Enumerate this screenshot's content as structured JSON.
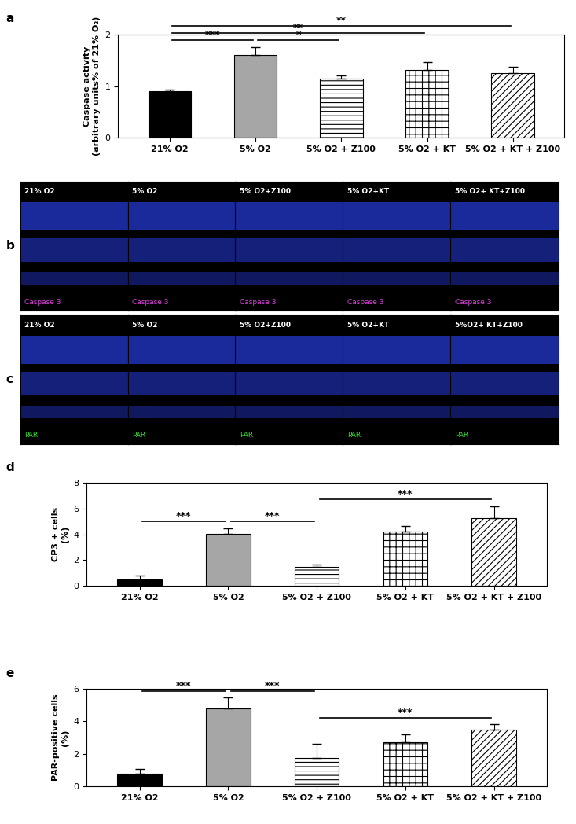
{
  "chart_data": [
    {
      "type": "bar",
      "panel": "a",
      "y_label": "Caspase activity\n(arbitrary units% of 21% O₂)",
      "categories": [
        "21% O2",
        "5% O2",
        "5% O2 + Z100",
        "5% O2 + KT",
        "5% O2 + KT + Z100"
      ],
      "values": [
        0.9,
        1.6,
        1.15,
        1.32,
        1.25
      ],
      "errors": [
        0.03,
        0.15,
        0.06,
        0.15,
        0.12
      ],
      "colors": [
        "#000000",
        "#a6a6a6",
        "#ffffff",
        "#ffffff",
        "#ffffff"
      ],
      "ylim": [
        0,
        2
      ],
      "yticks": [
        0,
        1,
        2
      ],
      "significance": [
        {
          "from": 0,
          "to": 1,
          "label": "***"
        },
        {
          "from": 1,
          "to": 2,
          "label": "*"
        },
        {
          "from": 0,
          "to": 3,
          "label": "**"
        },
        {
          "from": 0,
          "to": 4,
          "label": "**"
        }
      ]
    },
    {
      "type": "bar",
      "panel": "d",
      "y_label": "CP3 + cells\n(%)",
      "categories": [
        "21% O2",
        "5% O2",
        "5% O2 + Z100",
        "5% O2 + KT",
        "5% O2 + KT + Z100"
      ],
      "values": [
        0.5,
        4.05,
        1.5,
        4.2,
        5.25
      ],
      "errors": [
        0.3,
        0.4,
        0.15,
        0.45,
        0.9
      ],
      "colors": [
        "#000000",
        "#a6a6a6",
        "#ffffff",
        "#ffffff",
        "#ffffff"
      ],
      "ylim": [
        0,
        8
      ],
      "yticks": [
        0,
        2,
        4,
        6,
        8
      ],
      "significance": [
        {
          "from": 0,
          "to": 1,
          "label": "***"
        },
        {
          "from": 1,
          "to": 2,
          "label": "***"
        },
        {
          "from": 2,
          "to": 4,
          "label": "***"
        }
      ]
    },
    {
      "type": "bar",
      "panel": "e",
      "y_label": "PAR-positive cells\n(%)",
      "categories": [
        "21% O2",
        "5% O2",
        "5% O2 + Z100",
        "5% O2 + KT",
        "5% O2 + KT + Z100"
      ],
      "values": [
        0.75,
        4.8,
        1.75,
        2.7,
        3.5
      ],
      "errors": [
        0.3,
        0.65,
        0.85,
        0.5,
        0.3
      ],
      "colors": [
        "#000000",
        "#a6a6a6",
        "#ffffff",
        "#ffffff",
        "#ffffff"
      ],
      "ylim": [
        0,
        6
      ],
      "yticks": [
        0,
        2,
        4,
        6
      ],
      "significance": [
        {
          "from": 0,
          "to": 1,
          "label": "***"
        },
        {
          "from": 1,
          "to": 2,
          "label": "***"
        },
        {
          "from": 2,
          "to": 4,
          "label": "***"
        }
      ]
    }
  ],
  "image_rows": [
    {
      "panel": "b",
      "stain": "Caspase 3",
      "stain_color": "#e040e0",
      "titles": [
        "21% O2",
        "5% O2",
        "5% O2+Z100",
        "5% O2+KT",
        "5% O2+ KT+Z100"
      ]
    },
    {
      "panel": "c",
      "stain": "PAR",
      "stain_color": "#33dd33",
      "titles": [
        "21% O2",
        "5% O2",
        "5% O2+Z100",
        "5% O2+KT",
        "5%O2+ KT+Z100"
      ]
    }
  ]
}
